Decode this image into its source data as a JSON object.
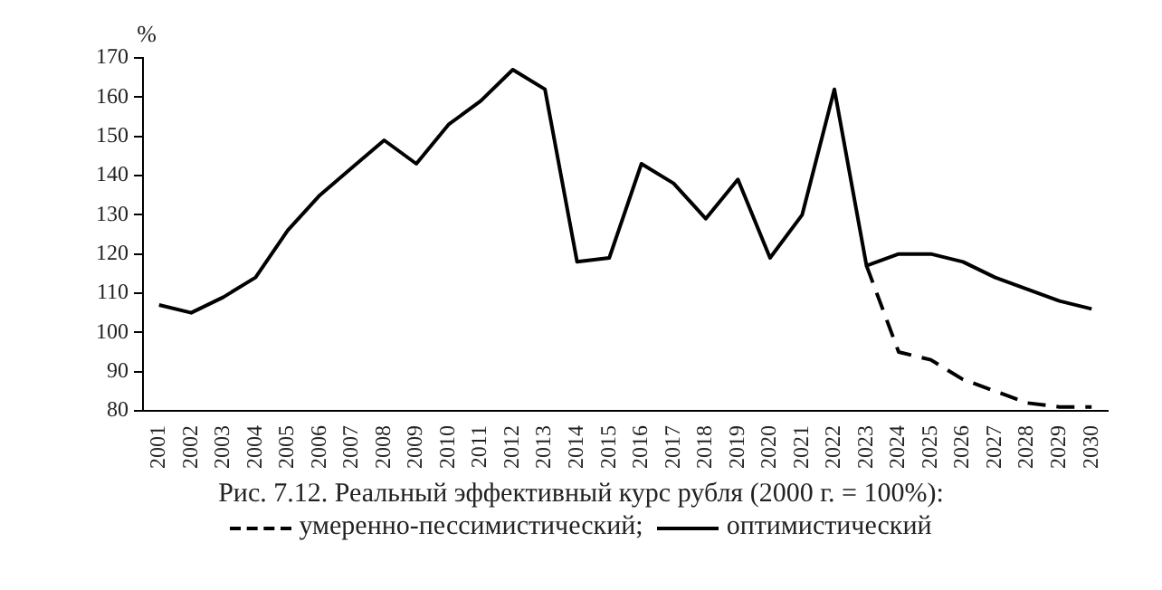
{
  "chart_data": {
    "type": "line",
    "title": "Рис. 7.12. Реальный эффективный курс рубля (2000 г. = 100%):",
    "ylabel": "%",
    "categories": [
      "2001",
      "2002",
      "2003",
      "2004",
      "2005",
      "2006",
      "2007",
      "2008",
      "2009",
      "2010",
      "2011",
      "2012",
      "2013",
      "2014",
      "2015",
      "2016",
      "2017",
      "2018",
      "2019",
      "2020",
      "2021",
      "2022",
      "2023",
      "2024",
      "2025",
      "2026",
      "2027",
      "2028",
      "2029",
      "2030"
    ],
    "series": [
      {
        "name": "умеренно-пессимистический",
        "color": "#000000",
        "line_style": "dashed",
        "values": [
          null,
          null,
          null,
          null,
          null,
          null,
          null,
          null,
          null,
          null,
          null,
          null,
          null,
          null,
          null,
          null,
          null,
          null,
          null,
          null,
          null,
          null,
          117,
          95,
          93,
          88,
          85,
          82,
          81,
          81
        ]
      },
      {
        "name": "оптимистический",
        "color": "#000000",
        "line_style": "solid",
        "values": [
          107,
          105,
          109,
          114,
          126,
          135,
          142,
          149,
          143,
          153,
          159,
          167,
          162,
          118,
          119,
          143,
          138,
          129,
          139,
          119,
          130,
          162,
          117,
          120,
          120,
          118,
          114,
          111,
          108,
          106
        ]
      }
    ],
    "annotations": [
      ";"
    ],
    "ylim": [
      80,
      170
    ],
    "yticks": [
      80,
      90,
      100,
      110,
      120,
      130,
      140,
      150,
      160,
      170
    ],
    "grid": false,
    "legend": "bottom",
    "marker": "none"
  }
}
